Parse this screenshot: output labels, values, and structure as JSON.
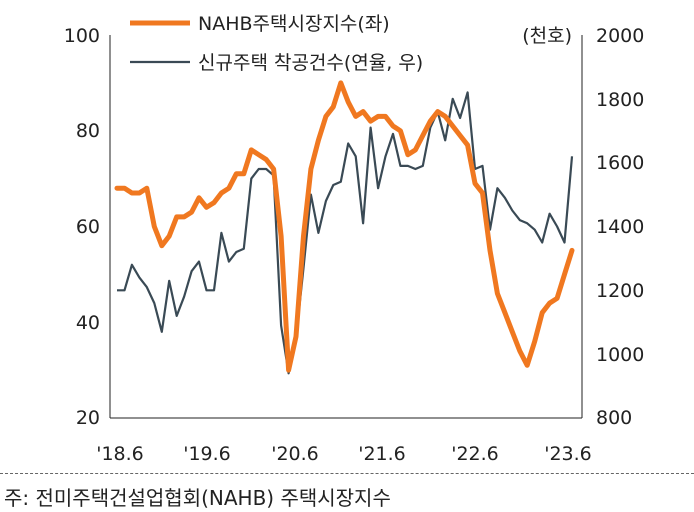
{
  "chart_data": {
    "type": "line",
    "x_tick_labels": [
      "'18.6",
      "'19.6",
      "'20.6",
      "'21.6",
      "'22.6",
      "'23.6"
    ],
    "y_left": {
      "ticks": [
        "100",
        "80",
        "60",
        "40",
        "20"
      ],
      "range": [
        20,
        100
      ]
    },
    "y_right": {
      "unit": "(천호)",
      "ticks": [
        "2000",
        "1800",
        "1600",
        "1400",
        "1200",
        "1000",
        "800"
      ],
      "range": [
        800,
        2000
      ]
    },
    "series": [
      {
        "name": "NAHB주택시장지수(좌)",
        "axis": "left",
        "color": "#F07820",
        "values": [
          68,
          68,
          67,
          67,
          68,
          60,
          56,
          58,
          62,
          62,
          63,
          66,
          64,
          65,
          67,
          68,
          71,
          71,
          76,
          75,
          74,
          72,
          58,
          30,
          37,
          58,
          72,
          78,
          83,
          85,
          90,
          86,
          83,
          84,
          82,
          83,
          83,
          81,
          80,
          75,
          76,
          79,
          82,
          84,
          83,
          81,
          79,
          77,
          69,
          67,
          55,
          46,
          42,
          38,
          34,
          31,
          36,
          42,
          44,
          45,
          50,
          55
        ],
        "start": "2018-06",
        "end": "2023-07"
      },
      {
        "name": "신규주택 착공건수(연율, 우)",
        "axis": "right",
        "color": "#3A4A55",
        "values": [
          1200,
          1200,
          1280,
          1240,
          1210,
          1160,
          1070,
          1230,
          1120,
          1180,
          1260,
          1290,
          1200,
          1200,
          1380,
          1290,
          1320,
          1330,
          1550,
          1580,
          1580,
          1560,
          1090,
          940,
          1050,
          1270,
          1500,
          1380,
          1480,
          1530,
          1540,
          1660,
          1620,
          1410,
          1710,
          1520,
          1620,
          1690,
          1590,
          1590,
          1580,
          1590,
          1710,
          1760,
          1670,
          1800,
          1740,
          1820,
          1580,
          1590,
          1390,
          1520,
          1490,
          1450,
          1420,
          1410,
          1390,
          1350,
          1440,
          1400,
          1350,
          1620
        ],
        "start": "2018-06",
        "end": "2023-07"
      }
    ],
    "legend": {
      "placement": "top-left"
    },
    "grid": false
  },
  "notes": {
    "source_text": "주:  전미주택건설업협회(NAHB)  주택시장지수"
  }
}
